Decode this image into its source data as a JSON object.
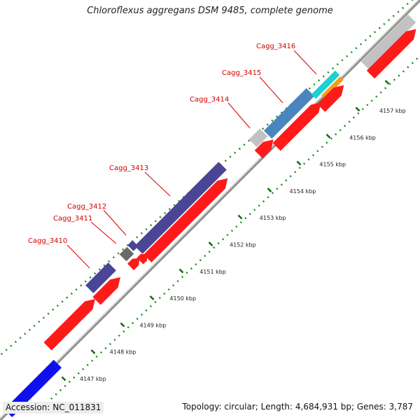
{
  "title": "Chloroflexus aggregans DSM 9485, complete genome",
  "accession": "Accession: NC_011831",
  "summary": "Topology: circular; Length: 4,684,931 bp; Genes: 3,787",
  "colors": {
    "backbone": "#8c8c8c",
    "tick": "#1a8a1a",
    "gene_label": "#d40000",
    "feature_blue": "#1010ee",
    "feature_red": "#ff1a1a",
    "feature_purple": "#4b4596",
    "feature_steelblue": "#4a86be",
    "feature_gray": "#c2c2c2",
    "feature_darkgray": "#6a6a6a",
    "feature_cyan": "#1ad2d2",
    "feature_orange": "#f29e18"
  },
  "scale_labels": [
    "4147 kbp",
    "4148 kbp",
    "4149 kbp",
    "4150 kbp",
    "4151 kbp",
    "4152 kbp",
    "4153 kbp",
    "4154 kbp",
    "4155 kbp",
    "4156 kbp",
    "4157 kbp"
  ],
  "gene_labels": [
    "Cagg_3410",
    "Cagg_3411",
    "Cagg_3412",
    "Cagg_3413",
    "Cagg_3414",
    "Cagg_3415",
    "Cagg_3416"
  ]
}
